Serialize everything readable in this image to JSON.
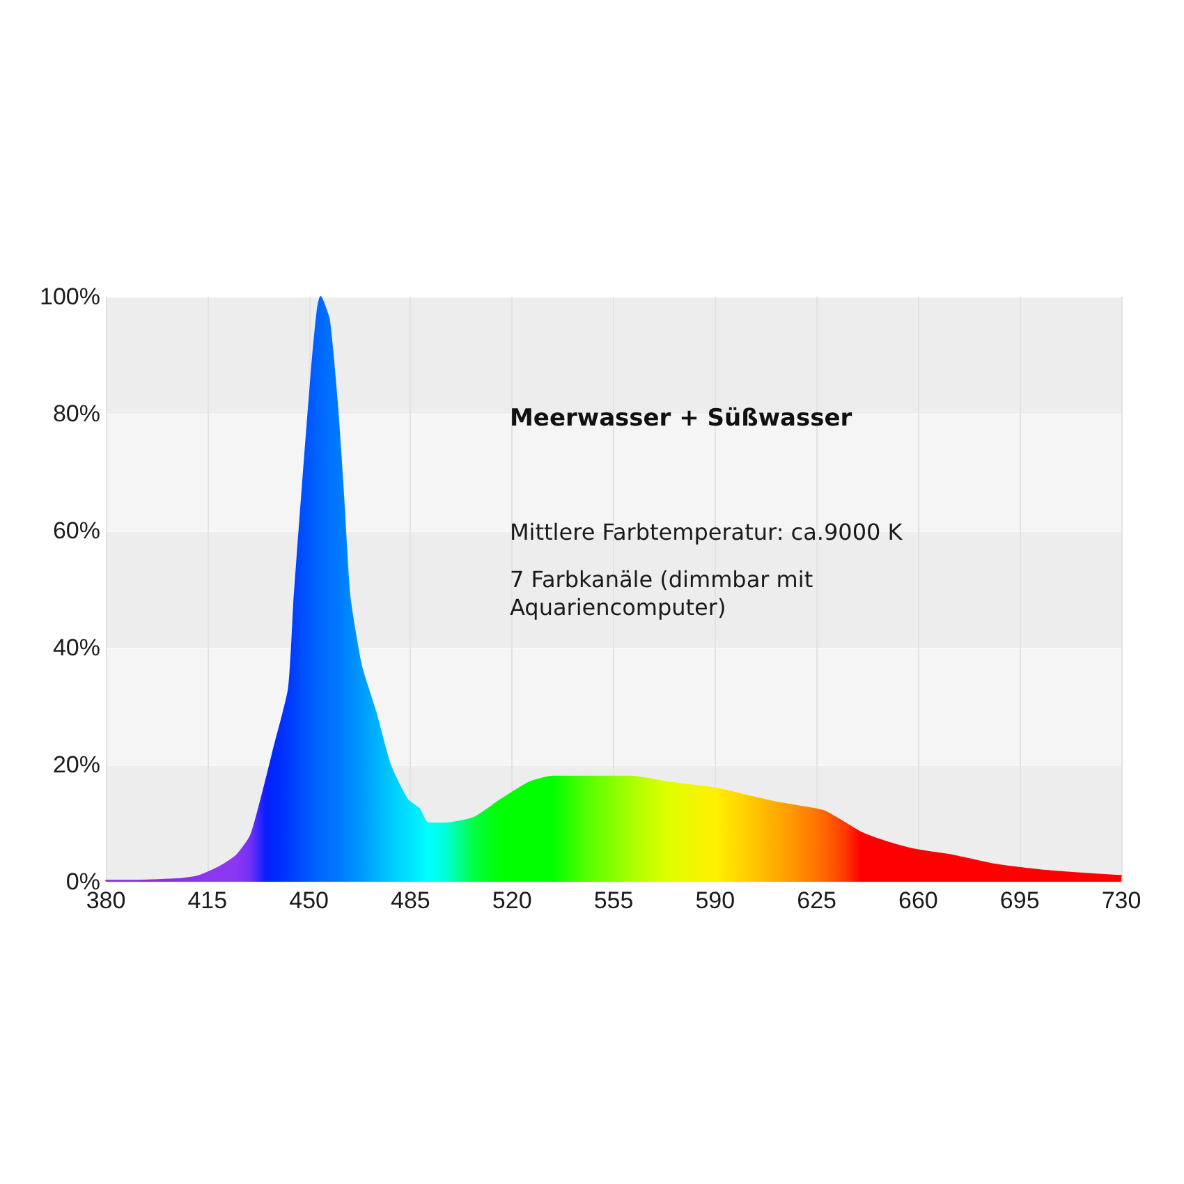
{
  "chart_data": {
    "type": "area",
    "title": "Meerwasser + Süßwasser",
    "annotations": [
      "Mittlere Farbtemperatur: ca.9000 K",
      "7 Farbkanäle (dimmbar mit Aquariencomputer)"
    ],
    "x": [
      380,
      390,
      396,
      406,
      412,
      419,
      425,
      430,
      435,
      438,
      443,
      445,
      448,
      451,
      453,
      454,
      455,
      457,
      460,
      462,
      464,
      468,
      473,
      478,
      484,
      488,
      491,
      497,
      507,
      516,
      526,
      534,
      545,
      561,
      574,
      590,
      603,
      612,
      624,
      628,
      635,
      640,
      648,
      659,
      672,
      686,
      702,
      715,
      730
    ],
    "series": [
      {
        "values": [
          0.2,
          0.2,
          0.3,
          0.5,
          1,
          2.5,
          4.5,
          8,
          17,
          23,
          33,
          49,
          69,
          88,
          98,
          100,
          99,
          96,
          80,
          65,
          49,
          37,
          29,
          20,
          14,
          12.5,
          10,
          10,
          11,
          14,
          17,
          18,
          18,
          18,
          17,
          16,
          14.5,
          13.5,
          12.5,
          12,
          10,
          8.5,
          7,
          5.5,
          4.5,
          3,
          2,
          1.5,
          1
        ],
        "colors": [
          "#8a2be2",
          "#8a2be2",
          "#8a2be2",
          "#8a30e8",
          "#8c34ee",
          "#8c38f2",
          "#8a38f4",
          "#7030f8",
          "#0a1eff",
          "#0028ff",
          "#0038ff",
          "#0040ff",
          "#0050ff",
          "#005cff",
          "#0064ff",
          "#0068ff",
          "#006cff",
          "#0070ff",
          "#0078ff",
          "#0080ff",
          "#0088ff",
          "#0098ff",
          "#00b0ff",
          "#00c8ff",
          "#00e0ff",
          "#00f0ff",
          "#00ffff",
          "#00ffd8",
          "#00ff40",
          "#00ff00",
          "#00ff00",
          "#00ff00",
          "#50ff00",
          "#a8ff00",
          "#e0ff00",
          "#fff000",
          "#ffc800",
          "#ffa800",
          "#ff7800",
          "#ff6400",
          "#ff3800",
          "#ff0000",
          "#ff0000",
          "#ff0000",
          "#ff0000",
          "#ff0000",
          "#ff0000",
          "#ff0000",
          "#ff0000"
        ]
      }
    ],
    "xlim": [
      380,
      730
    ],
    "xticks": [
      380,
      415,
      450,
      485,
      520,
      555,
      590,
      625,
      660,
      695,
      730
    ],
    "ylim": [
      0,
      100
    ],
    "yticks": [
      {
        "value": 0,
        "label": "0%"
      },
      {
        "value": 20,
        "label": "20%"
      },
      {
        "value": 40,
        "label": "40%"
      },
      {
        "value": 60,
        "label": "60%"
      },
      {
        "value": 80,
        "label": "80%"
      },
      {
        "value": 100,
        "label": "100%"
      }
    ],
    "grid": true,
    "marker": "none"
  }
}
